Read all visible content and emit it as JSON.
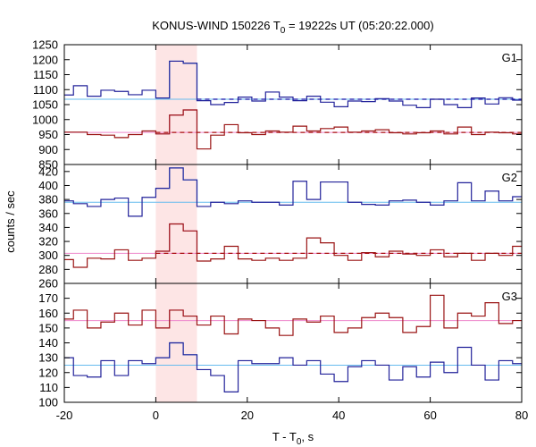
{
  "chart_data": {
    "type": "line",
    "title": {
      "main": "KONUS-WIND 150226 T",
      "sub": "0",
      "rest": " = 19222s UT (05:20:22.000)"
    },
    "xlabel": {
      "main": "T - T",
      "sub": "0",
      "rest": ", s"
    },
    "ylabel": "counts / sec",
    "xlim": [
      -20,
      80
    ],
    "xticks": [
      -20,
      0,
      20,
      40,
      60,
      80
    ],
    "highlight_interval": [
      0,
      9
    ],
    "colors": {
      "blue": "#22229a",
      "red": "#9a1414",
      "highlight": "#fde5e5",
      "bg_blue": "#66bbee",
      "bg_red": "#ee88cc",
      "fit_blue": "#1111aa",
      "fit_red": "#aa1111"
    },
    "bin_edges": [
      -20,
      -18,
      -15,
      -12,
      -9,
      -6,
      -3,
      0,
      3,
      6,
      9,
      12,
      15,
      18,
      21,
      24,
      27,
      30,
      33,
      36,
      39,
      42,
      45,
      48,
      51,
      54,
      57,
      60,
      63,
      66,
      69,
      72,
      75,
      78,
      80
    ],
    "panels": [
      {
        "name": "G1",
        "ylim": [
          850,
          1250
        ],
        "yticks": [
          850,
          900,
          950,
          1000,
          1050,
          1100,
          1150,
          1200,
          1250
        ],
        "series": [
          {
            "color": "blue",
            "values": [
              1082,
              1113,
              1078,
              1098,
              1094,
              1083,
              1098,
              1072,
              1195,
              1188,
              1063,
              1050,
              1057,
              1075,
              1062,
              1092,
              1075,
              1063,
              1078,
              1058,
              1043,
              1062,
              1060,
              1070,
              1062,
              1048,
              1040,
              1068,
              1050,
              1040,
              1072,
              1052,
              1073,
              1065
            ],
            "bg": 1068,
            "fit": {
              "from": 9,
              "to": 80,
              "value": 1068
            }
          },
          {
            "color": "red",
            "values": [
              958,
              958,
              950,
              948,
              940,
              950,
              962,
              952,
              1015,
              1032,
              902,
              948,
              983,
              956,
              950,
              962,
              958,
              978,
              962,
              970,
              975,
              958,
              962,
              966,
              956,
              952,
              956,
              962,
              952,
              975,
              950,
              958,
              956,
              952
            ],
            "bg": 957,
            "fit": {
              "from": 0,
              "to": 80,
              "value": 957
            }
          }
        ]
      },
      {
        "name": "G2",
        "ylim": [
          260,
          430
        ],
        "yticks": [
          260,
          280,
          300,
          320,
          340,
          360,
          380,
          400,
          420
        ],
        "series": [
          {
            "color": "blue",
            "values": [
              378,
              374,
              370,
              380,
              382,
              356,
              383,
              396,
              425,
              408,
              370,
              376,
              374,
              378,
              376,
              376,
              372,
              406,
              380,
              405,
              405,
              376,
              373,
              372,
              378,
              379,
              376,
              372,
              378,
              404,
              378,
              392,
              378,
              384
            ],
            "bg": 376,
            "fit": null
          },
          {
            "color": "red",
            "values": [
              294,
              283,
              296,
              295,
              308,
              293,
              296,
              306,
              345,
              335,
              292,
              295,
              313,
              295,
              293,
              296,
              293,
              296,
              325,
              318,
              300,
              293,
              304,
              298,
              306,
              302,
              300,
              308,
              298,
              303,
              293,
              303,
              300,
              313
            ],
            "bg": 303,
            "fit": {
              "from": 0,
              "to": 80,
              "value": 303
            }
          }
        ]
      },
      {
        "name": "G3",
        "ylim": [
          100,
          180
        ],
        "yticks": [
          100,
          110,
          120,
          130,
          140,
          150,
          160,
          170
        ],
        "series": [
          {
            "color": "red",
            "values": [
              156,
              162,
              150,
              154,
              160,
              152,
              162,
              150,
              162,
              158,
              152,
              158,
              146,
              156,
              155,
              150,
              145,
              156,
              154,
              158,
              147,
              150,
              157,
              160,
              157,
              147,
              151,
              172,
              150,
              160,
              158,
              167,
              153,
              155
            ],
            "bg": 155,
            "fit": null
          },
          {
            "color": "blue",
            "values": [
              130,
              118,
              117,
              128,
              118,
              128,
              126,
              130,
              140,
              132,
              122,
              118,
              107,
              128,
              126,
              126,
              130,
              125,
              128,
              119,
              114,
              124,
              128,
              125,
              115,
              124,
              117,
              127,
              120,
              137,
              125,
              115,
              128,
              126
            ],
            "bg": 125,
            "fit": null
          }
        ]
      }
    ]
  }
}
